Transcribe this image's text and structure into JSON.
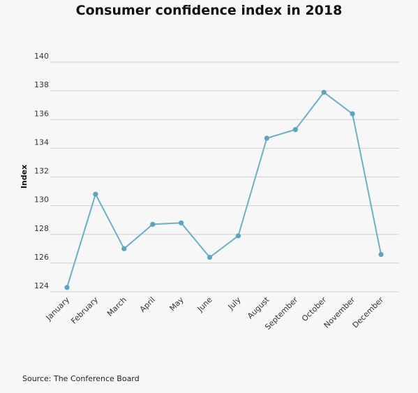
{
  "chart_data": {
    "type": "line",
    "title": "Consumer confidence index in 2018",
    "ylabel": "Index",
    "xlabel": "",
    "categories": [
      "January",
      "February",
      "March",
      "April",
      "May",
      "June",
      "July",
      "August",
      "September",
      "October",
      "November",
      "December"
    ],
    "series": [
      {
        "values": [
          124.3,
          130.8,
          127.0,
          128.7,
          128.8,
          126.4,
          127.9,
          134.7,
          135.3,
          137.9,
          136.4,
          126.6
        ]
      }
    ],
    "ylim": [
      124,
      140
    ],
    "yticks": [
      124,
      126,
      128,
      130,
      132,
      134,
      136,
      138,
      140
    ],
    "grid": true,
    "line_color": "#6ab0c9",
    "point_color": "#5aa6c2"
  },
  "source": "Source: The Conference Board"
}
